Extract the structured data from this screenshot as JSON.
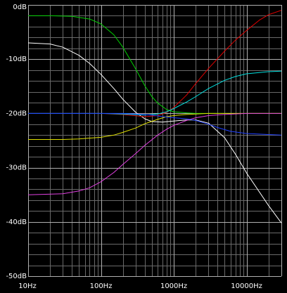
{
  "chart_data": {
    "type": "line",
    "title": "",
    "xlabel": "",
    "ylabel": "",
    "x_scale": "log",
    "xlim": [
      10,
      30000
    ],
    "ylim": [
      -50,
      0
    ],
    "grid": true,
    "background": "#000000",
    "grid_color": "#808080",
    "x_tick_labels": [
      "10Hz",
      "100Hz",
      "1000Hz",
      "10000Hz"
    ],
    "x_ticks": [
      10,
      100,
      1000,
      10000
    ],
    "y_tick_labels": [
      "0dB",
      "-10dB",
      "-20dB",
      "-30dB",
      "-40dB",
      "-50dB"
    ],
    "y_ticks": [
      0,
      -10,
      -20,
      -30,
      -40,
      -50
    ],
    "series": [
      {
        "color": "#00d000",
        "x": [
          10,
          20,
          40,
          70,
          100,
          150,
          200,
          300,
          400,
          500,
          600,
          800,
          1000,
          1500,
          2000,
          3000,
          5000,
          10000,
          30000
        ],
        "y": [
          -2.0,
          -2.0,
          -2.1,
          -2.6,
          -3.5,
          -5.5,
          -7.8,
          -11.8,
          -14.9,
          -16.9,
          -18.1,
          -19.3,
          -19.7,
          -19.9,
          -20.0,
          -20.0,
          -20.0,
          -20.0,
          -20.0
        ]
      },
      {
        "color": "#ffffff",
        "x": [
          10,
          20,
          30,
          50,
          70,
          100,
          150,
          200,
          300,
          400,
          500,
          700,
          1000,
          1500,
          2000,
          3000,
          5000,
          7000,
          10000,
          20000,
          30000
        ],
        "y": [
          -7.0,
          -7.2,
          -7.8,
          -9.3,
          -10.8,
          -12.8,
          -15.4,
          -17.4,
          -19.8,
          -21.0,
          -21.5,
          -21.6,
          -21.4,
          -21.2,
          -21.2,
          -21.8,
          -24.5,
          -27.5,
          -31.0,
          -37.0,
          -40.2
        ]
      },
      {
        "color": "#e00000",
        "x": [
          10,
          100,
          200,
          400,
          600,
          800,
          1000,
          1500,
          2000,
          3000,
          5000,
          7000,
          10000,
          15000,
          20000,
          30000
        ],
        "y": [
          -20.0,
          -20.0,
          -20.2,
          -20.6,
          -20.4,
          -19.8,
          -18.9,
          -16.6,
          -14.5,
          -11.7,
          -8.5,
          -6.5,
          -4.7,
          -2.8,
          -1.8,
          -1.0
        ]
      },
      {
        "color": "#00e0e0",
        "x": [
          10,
          100,
          200,
          400,
          600,
          800,
          1000,
          1500,
          2000,
          3000,
          5000,
          7000,
          10000,
          20000,
          30000
        ],
        "y": [
          -20.0,
          -20.0,
          -20.1,
          -20.3,
          -20.1,
          -19.7,
          -19.1,
          -17.9,
          -16.9,
          -15.4,
          -13.9,
          -13.2,
          -12.7,
          -12.3,
          -12.2
        ]
      },
      {
        "color": "#e0e000",
        "x": [
          10,
          30,
          50,
          100,
          150,
          200,
          300,
          400,
          600,
          800,
          1000,
          1500,
          2000,
          3000,
          5000,
          10000,
          30000
        ],
        "y": [
          -24.8,
          -24.8,
          -24.7,
          -24.4,
          -24.0,
          -23.5,
          -22.7,
          -21.9,
          -21.1,
          -20.6,
          -20.4,
          -20.2,
          -20.1,
          -20.0,
          -20.0,
          -20.0,
          -20.0
        ]
      },
      {
        "color": "#e040e0",
        "x": [
          10,
          30,
          50,
          70,
          100,
          150,
          200,
          300,
          400,
          600,
          800,
          1000,
          1500,
          2000,
          3000,
          5000,
          10000,
          30000
        ],
        "y": [
          -35.0,
          -34.8,
          -34.3,
          -33.7,
          -32.6,
          -30.9,
          -29.4,
          -27.4,
          -25.9,
          -24.0,
          -22.9,
          -22.2,
          -21.3,
          -20.8,
          -20.4,
          -20.2,
          -20.0,
          -20.0
        ]
      },
      {
        "color": "#2040ff",
        "x": [
          10,
          50,
          100,
          200,
          300,
          500,
          700,
          1000,
          1500,
          2000,
          3000,
          4000,
          6000,
          10000,
          20000,
          30000
        ],
        "y": [
          -20.0,
          -20.0,
          -20.0,
          -20.0,
          -20.1,
          -20.3,
          -20.6,
          -20.8,
          -21.0,
          -21.3,
          -22.0,
          -22.6,
          -23.3,
          -23.7,
          -23.9,
          -24.0
        ]
      }
    ]
  }
}
